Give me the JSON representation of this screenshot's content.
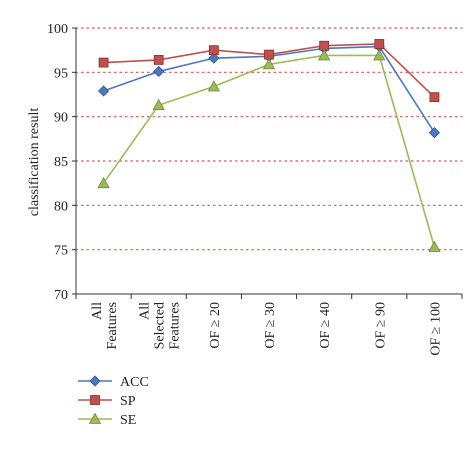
{
  "chart_data": {
    "type": "line",
    "title": "",
    "xlabel": "",
    "ylabel": "classification result",
    "ylim": [
      70,
      100
    ],
    "yticks": [
      70,
      75,
      80,
      85,
      90,
      95,
      100
    ],
    "grid": true,
    "legend_position": "bottom-left",
    "categories": [
      [
        "All",
        "Features"
      ],
      [
        "All",
        "Selected",
        "Features"
      ],
      [
        "OF ≥ 20"
      ],
      [
        "OF ≥ 30"
      ],
      [
        "OF ≥ 40"
      ],
      [
        "OF ≥ 90"
      ],
      [
        "OF ≥ 100"
      ]
    ],
    "series": [
      {
        "name": "ACC",
        "color": "#4a78c2",
        "marker": "diamond",
        "values": [
          92.9,
          95.1,
          96.6,
          96.8,
          97.7,
          97.9,
          88.2
        ]
      },
      {
        "name": "SP",
        "color": "#c0504d",
        "marker": "square",
        "values": [
          96.1,
          96.4,
          97.5,
          97.0,
          98.0,
          98.2,
          92.2
        ]
      },
      {
        "name": "SE",
        "color": "#9bbb59",
        "marker": "triangle",
        "values": [
          82.5,
          91.3,
          93.4,
          95.9,
          96.9,
          96.9,
          75.3
        ]
      }
    ]
  }
}
